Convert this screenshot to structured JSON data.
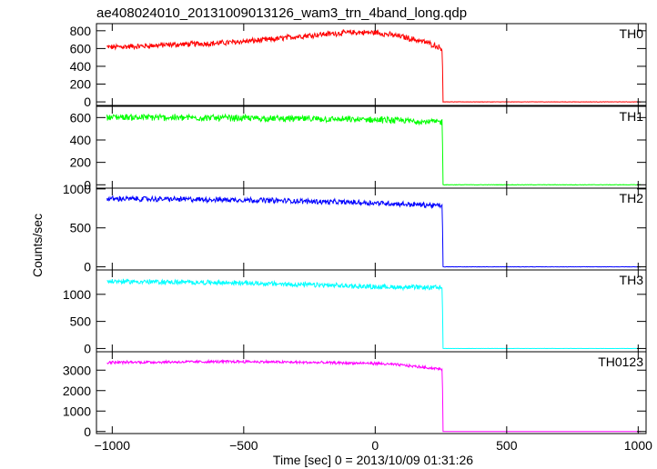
{
  "chart_data": {
    "type": "line",
    "title": "ae408024010_20131009013126_wam3_trn_4band_long.qdp",
    "xlabel": "Time [sec] 0 = 2013/10/09 01:31:26",
    "ylabel": "Counts/sec",
    "xlim": [
      -1060,
      1030
    ],
    "xticks": [
      -1000,
      -500,
      0,
      500,
      1000
    ],
    "grid": false,
    "panels": [
      {
        "name": "TH0",
        "color": "#ff0000",
        "ylim": [
          -40,
          880
        ],
        "yticks": [
          0,
          200,
          400,
          600,
          800
        ],
        "noise": 28,
        "x": [
          -1020,
          -900,
          -800,
          -600,
          -400,
          -300,
          -200,
          -100,
          0,
          100,
          200,
          255,
          258,
          1010
        ],
        "y": [
          615,
          625,
          640,
          660,
          700,
          735,
          760,
          780,
          780,
          735,
          665,
          600,
          0,
          0
        ]
      },
      {
        "name": "TH1",
        "color": "#00ff00",
        "ylim": [
          -30,
          700
        ],
        "yticks": [
          0,
          200,
          400,
          600
        ],
        "noise": 26,
        "x": [
          -1020,
          -500,
          0,
          255,
          258,
          1010
        ],
        "y": [
          605,
          595,
          580,
          560,
          0,
          0
        ]
      },
      {
        "name": "TH2",
        "color": "#0000ff",
        "ylim": [
          -40,
          1010
        ],
        "yticks": [
          0,
          500,
          1000
        ],
        "noise": 30,
        "x": [
          -1020,
          -500,
          0,
          255,
          258,
          1010
        ],
        "y": [
          875,
          860,
          820,
          785,
          0,
          0
        ]
      },
      {
        "name": "TH3",
        "color": "#00ffff",
        "ylim": [
          -60,
          1450
        ],
        "yticks": [
          0,
          500,
          1000
        ],
        "noise": 40,
        "x": [
          -1020,
          -500,
          0,
          255,
          258,
          1010
        ],
        "y": [
          1240,
          1210,
          1140,
          1120,
          0,
          0
        ]
      },
      {
        "name": "TH0123",
        "color": "#ff00ff",
        "ylim": [
          -100,
          3900
        ],
        "yticks": [
          0,
          1000,
          2000,
          3000
        ],
        "noise": 60,
        "x": [
          -1020,
          -500,
          0,
          100,
          200,
          255,
          258,
          1010
        ],
        "y": [
          3380,
          3420,
          3330,
          3250,
          3120,
          3050,
          0,
          0
        ]
      }
    ]
  }
}
